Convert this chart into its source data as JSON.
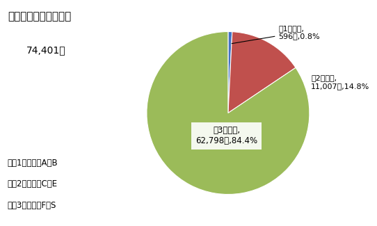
{
  "title": "産業別従業者数・割合",
  "subtitle": "74,401人",
  "slices": [
    {
      "label": "第1次産業",
      "value": 596,
      "pct": 0.8,
      "color": "#4472C4"
    },
    {
      "label": "第2次産業",
      "value": 11007,
      "pct": 14.8,
      "color": "#C0504D"
    },
    {
      "label": "第3次産業",
      "value": 62798,
      "pct": 84.4,
      "color": "#9BBB59"
    }
  ],
  "legend_lines": [
    "・第1次産業：A～B",
    "・第2次産業：C～E",
    "・第3次産業：F～S"
  ],
  "bg_color": "#FFFFFF"
}
